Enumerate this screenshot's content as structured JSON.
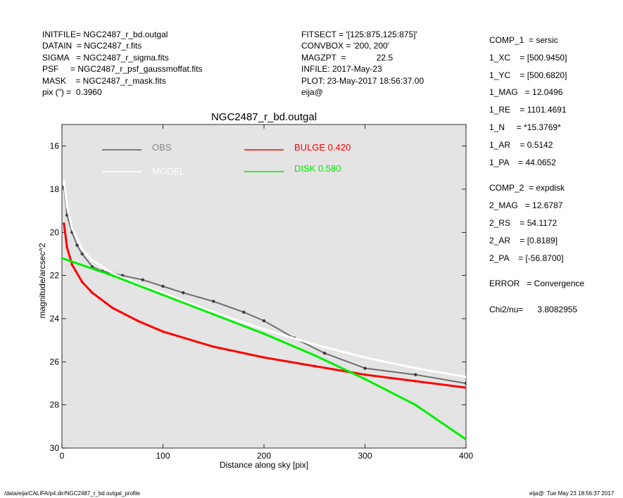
{
  "header_left": [
    "INITFILE= NGC2487_r_bd.outgal",
    "DATAIN  = NGC2487_r.fits",
    "SIGMA   = NGC2487_r_sigma.fits",
    "PSF     = NGC2487_r_psf_gaussmoffat.fits",
    "MASK    = NGC2487_r_mask.fits",
    "pix (\") =  0.3960"
  ],
  "header_mid": [
    "FITSECT = '[125:875,125:875]'",
    "CONVBOX = '200, 200'",
    "MAGZPT  =             22.5",
    "INFILE: 2017-May-23",
    "PLOT: 23-May-2017 18:56:37.00",
    "eija@"
  ],
  "params_comp1": [
    "COMP_1  = sersic",
    "1_XC    = [500.9450]",
    "1_YC    = [500.6820]",
    "1_MAG   = 12.0496",
    "1_RE    = 1101.4691",
    "1_N     = *15.3769*",
    "1_AR    = 0.5142",
    "1_PA    = 44.0652"
  ],
  "params_comp2": [
    "COMP_2  = expdisk",
    "2_MAG   = 12.6787",
    "2_RS    = 54.1172",
    "2_AR    = [0.8189]",
    "2_PA    = [-56.8700]"
  ],
  "params_error": "ERROR   = Convergence",
  "params_chi": "Chi2/nu=      3.8082955",
  "footer_left": "/data/eija/CALIFA/p4.dir/NGC2487_r_bd.outgal_profile",
  "footer_right": "eija@  Tue May 23 18:56:37 2017",
  "chart_data": {
    "type": "scatter",
    "title": "NGC2487_r_bd.outgal",
    "xlabel": "Distance along sky [pix]",
    "ylabel": "magnitude/arcsec^2",
    "xlim": [
      0,
      400
    ],
    "ylim": [
      30,
      15
    ],
    "y_inverted": true,
    "x_ticks": [
      "0",
      "100",
      "200",
      "300",
      "400"
    ],
    "y_ticks": [
      "16",
      "18",
      "20",
      "22",
      "24",
      "26",
      "28",
      "30"
    ],
    "background_color": "#e4e4e4",
    "legend": [
      {
        "name": "OBS",
        "color": "#5a5a5a"
      },
      {
        "name": "MODEL",
        "color": "#ffffff"
      },
      {
        "name": "BULGE  0.420",
        "color": "#ff0000"
      },
      {
        "name": "DISK  0.580",
        "color": "#00ee00"
      }
    ],
    "series": [
      {
        "name": "OBS",
        "color": "#3c3c3c",
        "x": [
          2,
          5,
          10,
          15,
          20,
          30,
          40,
          50,
          60,
          80,
          100,
          120,
          150,
          180,
          200,
          230,
          260,
          300,
          350,
          400
        ],
        "y": [
          17.9,
          19.2,
          20.0,
          20.6,
          21.0,
          21.6,
          21.8,
          21.9,
          22.0,
          22.2,
          22.5,
          22.8,
          23.2,
          23.7,
          24.1,
          24.9,
          25.6,
          26.3,
          26.6,
          27.0
        ]
      },
      {
        "name": "MODEL",
        "color": "#ffffff",
        "x": [
          2,
          5,
          10,
          20,
          30,
          50,
          75,
          100,
          150,
          200,
          250,
          300,
          350,
          400
        ],
        "y": [
          17.6,
          18.8,
          19.8,
          20.8,
          21.3,
          21.9,
          22.4,
          22.8,
          23.7,
          24.5,
          25.2,
          25.8,
          26.3,
          26.7
        ]
      },
      {
        "name": "BULGE  0.420",
        "color": "#ff0000",
        "x": [
          2,
          5,
          10,
          20,
          30,
          50,
          75,
          100,
          150,
          200,
          250,
          300,
          350,
          400
        ],
        "y": [
          19.6,
          20.7,
          21.5,
          22.3,
          22.8,
          23.5,
          24.1,
          24.6,
          25.3,
          25.8,
          26.2,
          26.6,
          26.9,
          27.2
        ]
      },
      {
        "name": "DISK  0.580",
        "color": "#00ee00",
        "x": [
          0,
          50,
          100,
          150,
          200,
          250,
          300,
          350,
          400
        ],
        "y": [
          21.2,
          22.0,
          22.9,
          23.8,
          24.7,
          25.7,
          26.8,
          28.0,
          29.6
        ]
      }
    ]
  }
}
